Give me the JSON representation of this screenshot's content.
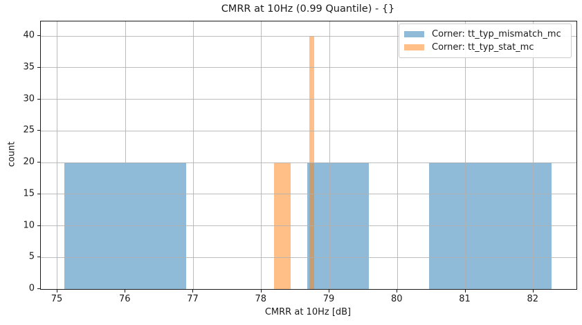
{
  "chart_data": {
    "type": "bar",
    "subtype": "histogram",
    "title": "CMRR at 10Hz (0.99 Quantile) - {}",
    "xlabel": "CMRR at 10Hz [dB]",
    "ylabel": "count",
    "xlim": [
      74.756,
      82.633
    ],
    "ylim": [
      0,
      42.31
    ],
    "xticks": [
      75,
      76,
      77,
      78,
      79,
      80,
      81,
      82
    ],
    "yticks": [
      0,
      5,
      10,
      15,
      20,
      25,
      30,
      35,
      40
    ],
    "grid": true,
    "legend_position": "upper right",
    "series": [
      {
        "name": "Corner: tt_typ_mismatch_mc",
        "base_color": "#1f77b4",
        "fill": "rgba(31,119,180,0.5)",
        "rendered_fill_on_white": "#8fbbd9",
        "bars": [
          {
            "x_start": 75.1,
            "x_end": 76.89,
            "count": 20
          },
          {
            "x_start": 78.67,
            "x_end": 79.58,
            "count": 20
          },
          {
            "x_start": 80.47,
            "x_end": 82.27,
            "count": 20
          }
        ]
      },
      {
        "name": "Corner: tt_typ_stat_mc",
        "base_color": "#ff7f0e",
        "fill": "rgba(255,127,14,0.5)",
        "rendered_fill_on_white": "#ffbf86",
        "bars": [
          {
            "x_start": 78.19,
            "x_end": 78.43,
            "count": 20
          },
          {
            "x_start": 78.7,
            "x_end": 78.78,
            "count": 40
          }
        ]
      }
    ]
  },
  "colors": {
    "grid": "#b0b0b0",
    "spine": "#1a1a1a",
    "text": "#1a1a1a",
    "background": "#ffffff",
    "legend_border": "#cccccc"
  }
}
